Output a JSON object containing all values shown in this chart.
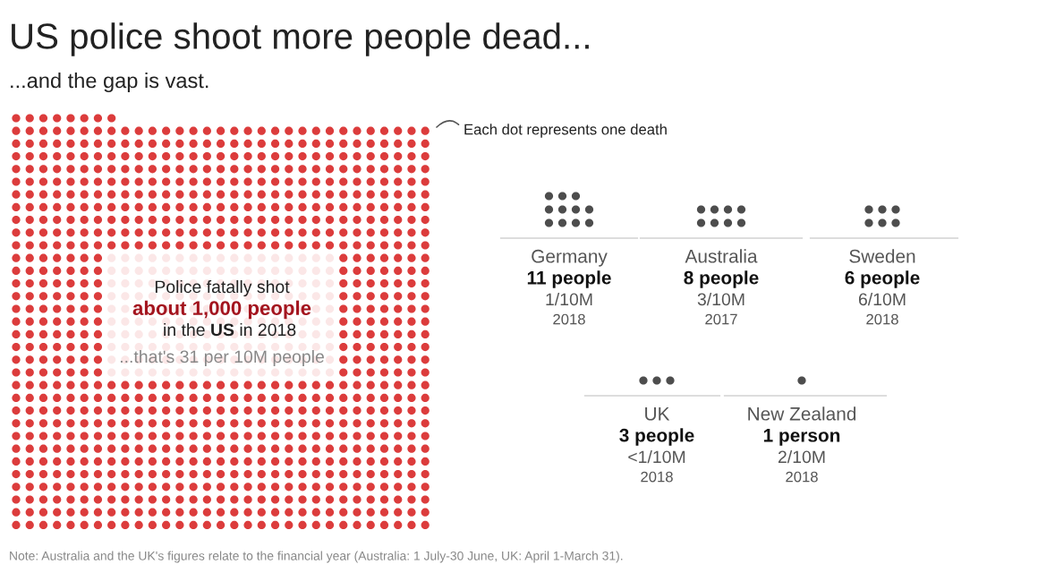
{
  "chart_data": {
    "type": "other",
    "title": "US police shoot more people dead...",
    "subtitle": "...and the gap is vast.",
    "categories": [
      "US",
      "Germany",
      "Australia",
      "Sweden",
      "UK",
      "New Zealand"
    ],
    "values": [
      1000,
      11,
      8,
      6,
      3,
      1
    ],
    "colors": [
      "#dc3c3c",
      "#4d4d4d",
      "#4d4d4d",
      "#4d4d4d",
      "#4d4d4d",
      "#4d4d4d"
    ],
    "value_labels": [
      "about 1,000 people",
      "11 people",
      "8 people",
      "6 people",
      "3 people",
      "1 person"
    ],
    "annotations": [
      "Police fatally shot",
      "in the",
      "in 2018",
      "...that's 31 per 10M people",
      "Each dot represents one death",
      "1/10M",
      "2018",
      "3/10M",
      "2017",
      "6/10M",
      "2018",
      "<1/10M",
      "2018",
      "2/10M",
      "2018",
      "Note: Australia and the UK's figures relate to the financial year (Australia: 1 July-30 June, UK: April 1-March 31)."
    ]
  }
}
